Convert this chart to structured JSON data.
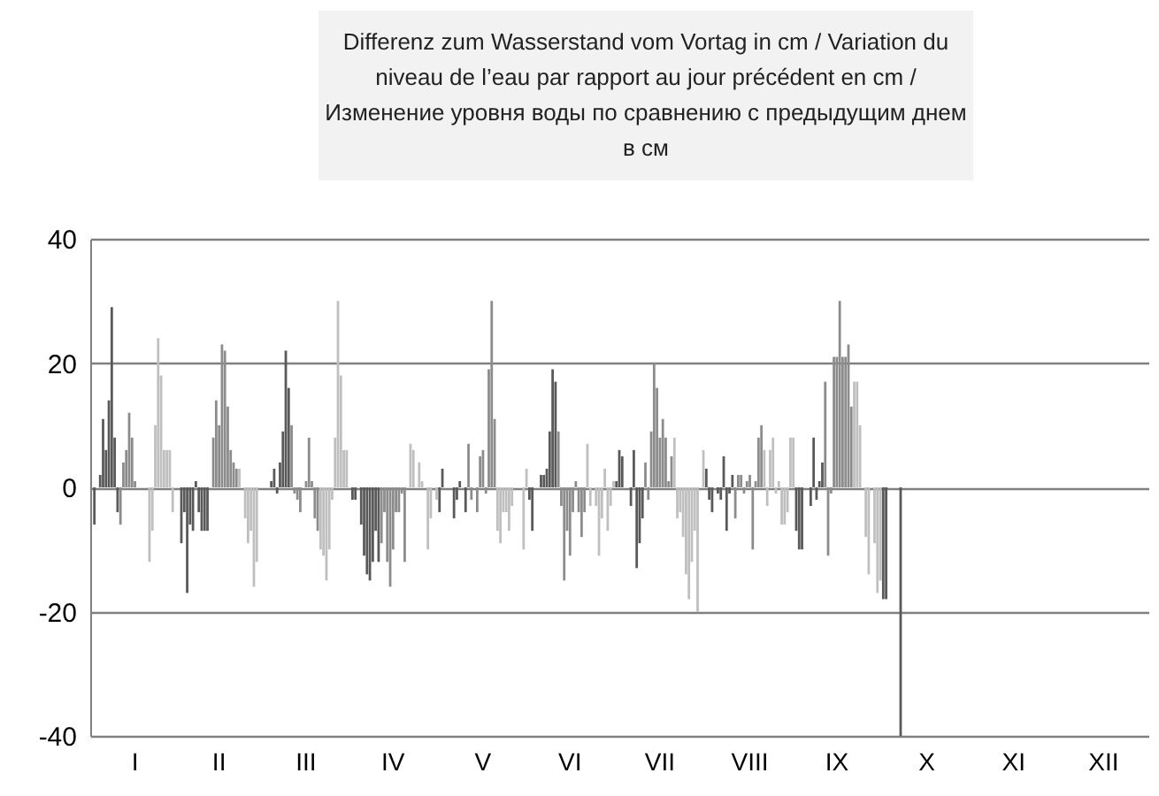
{
  "chart_data": {
    "type": "bar",
    "title": "Differenz zum Wasserstand vom Vortag in cm / Variation du niveau de l’eau par rapport au jour précédent en cm / Изменение уровня воды по сравнению с предыдущим днем в см",
    "categories": [
      null,
      null,
      null,
      null,
      null,
      null,
      null,
      null,
      null,
      null,
      null,
      null,
      null,
      null,
      null,
      "I",
      null,
      null,
      null,
      null,
      null,
      null,
      null,
      null,
      null,
      null,
      null,
      null,
      null,
      null,
      null,
      null,
      null,
      null,
      null,
      null,
      null,
      null,
      null,
      null,
      null,
      null,
      null,
      null,
      "II",
      null,
      null,
      null,
      null,
      null,
      null,
      null,
      null,
      null,
      null,
      null,
      null,
      null,
      null,
      null,
      null,
      null,
      null,
      null,
      null,
      null,
      null,
      null,
      null,
      null,
      null,
      null,
      null,
      null,
      "III",
      null,
      null,
      null,
      null,
      null,
      null,
      null,
      null,
      null,
      null,
      null,
      null,
      null,
      null,
      null,
      null,
      null,
      null,
      null,
      null,
      null,
      null,
      null,
      null,
      null,
      null,
      null,
      null,
      null,
      "IV",
      null,
      null,
      null,
      null,
      null,
      null,
      null,
      null,
      null,
      null,
      null,
      null,
      null,
      null,
      null,
      null,
      null,
      null,
      null,
      null,
      null,
      null,
      null,
      null,
      null,
      null,
      null,
      null,
      null,
      null,
      "V",
      null,
      null,
      null,
      null,
      null,
      null,
      null,
      null,
      null,
      null,
      null,
      null,
      null,
      null,
      null,
      null,
      null,
      null,
      null,
      null,
      null,
      null,
      null,
      null,
      null,
      null,
      null,
      null,
      null,
      "VI",
      null,
      null,
      null,
      null,
      null,
      null,
      null,
      null,
      null,
      null,
      null,
      null,
      null,
      null,
      null,
      null,
      null,
      null,
      null,
      null,
      null,
      null,
      null,
      null,
      null,
      null,
      null,
      null,
      null,
      null,
      "VII",
      null,
      null,
      null,
      null,
      null,
      null,
      null,
      null,
      null,
      null,
      null,
      null,
      null,
      null,
      null,
      null,
      null,
      null,
      null,
      null,
      null,
      null,
      null,
      null,
      null,
      null,
      null,
      null,
      null,
      null,
      "VIII",
      null,
      null,
      null,
      null,
      null,
      null,
      null,
      null,
      null,
      null,
      null,
      null,
      null,
      null,
      null,
      null,
      null,
      null,
      null,
      null,
      null,
      null,
      null,
      null,
      null,
      null,
      null,
      null,
      null,
      "IX",
      null,
      null,
      null,
      null,
      null,
      null,
      null,
      null,
      null,
      null,
      null,
      null,
      null,
      null,
      null,
      null,
      null,
      null,
      null,
      null,
      null,
      null,
      null,
      null,
      null,
      null,
      null,
      null,
      null,
      null,
      "X",
      null,
      null,
      null,
      null,
      null,
      null,
      null,
      null,
      null,
      null,
      null,
      null,
      null,
      null,
      null,
      null,
      null,
      null,
      null,
      null,
      null,
      null,
      null,
      null,
      null,
      null,
      null,
      null,
      null,
      "XI",
      null,
      null,
      null,
      null,
      null,
      null,
      null,
      null,
      null,
      null,
      null,
      null,
      null,
      null,
      null,
      null,
      null,
      null,
      null,
      null,
      null,
      null,
      null,
      null,
      null,
      null,
      null,
      null,
      null,
      null,
      "XII",
      null,
      null,
      null,
      null,
      null,
      null,
      null,
      null,
      null,
      null,
      null,
      null,
      null,
      null,
      null
    ],
    "values": [
      null,
      -6,
      0,
      2,
      11,
      6,
      14,
      29,
      8,
      -4,
      -6,
      4,
      6,
      12,
      8,
      1,
      0,
      0,
      0,
      0,
      -12,
      -7,
      10,
      24,
      18,
      6,
      6,
      6,
      -4,
      0,
      0,
      -9,
      -4,
      -17,
      -6,
      -7,
      1,
      -4,
      -7,
      -7,
      -7,
      0,
      8,
      14,
      10,
      23,
      22,
      13,
      6,
      4,
      3,
      3,
      0,
      -5,
      -9,
      -7,
      -16,
      -12,
      0,
      0,
      0,
      0,
      1,
      3,
      -1,
      4,
      9,
      22,
      16,
      10,
      -1,
      -2,
      -4,
      0,
      1,
      8,
      1,
      -5,
      -7,
      -10,
      -11,
      -15,
      -10,
      -2,
      8,
      30,
      18,
      6,
      6,
      0,
      -2,
      -2,
      0,
      -6,
      -11,
      -14,
      -15,
      -12,
      -7,
      -12,
      -9,
      -4,
      -12,
      -16,
      -10,
      -4,
      -4,
      -1,
      -12,
      0,
      7,
      6,
      0,
      4,
      1,
      0,
      -10,
      -5,
      0,
      -2,
      -4,
      3,
      0,
      0,
      0,
      -5,
      -2,
      1,
      0,
      -4,
      7,
      -2,
      0,
      -4,
      5,
      6,
      -1,
      19,
      30,
      11,
      -7,
      -9,
      -4,
      -4,
      -7,
      -3,
      0,
      0,
      0,
      -10,
      3,
      -2,
      -7,
      0,
      0,
      2,
      2,
      3,
      9,
      19,
      17,
      9,
      -3,
      -15,
      -7,
      -11,
      -4,
      1,
      -4,
      -8,
      -4,
      7,
      -3,
      0,
      -3,
      -11,
      -5,
      3,
      -7,
      -3,
      1,
      1,
      6,
      5,
      0,
      0,
      -3,
      6,
      -13,
      -9,
      -5,
      4,
      -2,
      9,
      20,
      16,
      8,
      11,
      8,
      1,
      5,
      8,
      -5,
      -4,
      -8,
      -14,
      -18,
      -12,
      -7,
      -20,
      0,
      6,
      3,
      -2,
      -4,
      0,
      -1,
      -2,
      5,
      -7,
      -1,
      2,
      -5,
      2,
      2,
      -1,
      1,
      2,
      -10,
      1,
      8,
      10,
      6,
      -3,
      6,
      8,
      -1,
      1,
      -6,
      -6,
      -4,
      8,
      8,
      -7,
      -10,
      -10,
      0,
      0,
      -3,
      8,
      -2,
      1,
      4,
      17,
      -11,
      -1,
      21,
      21,
      30,
      21,
      21,
      23,
      13,
      17,
      17,
      10,
      0,
      -8,
      -14,
      0,
      -9,
      -17,
      -15,
      -18,
      -18,
      null,
      null,
      null,
      null,
      -40,
      null,
      null,
      null,
      null,
      null,
      null,
      null,
      null,
      null,
      null,
      null,
      null,
      null,
      null,
      null,
      null,
      null,
      null,
      null,
      null,
      null,
      null,
      null,
      null,
      null,
      null,
      null,
      null,
      null,
      null,
      null,
      null,
      null,
      null,
      null,
      null,
      null,
      null,
      null,
      null,
      null,
      null,
      null,
      null,
      null,
      null,
      null,
      null,
      null,
      null,
      null,
      null,
      null,
      null,
      null,
      null,
      null,
      null,
      null,
      null,
      null,
      null,
      null,
      null,
      null,
      null,
      null,
      null,
      null,
      null,
      null,
      null,
      null,
      null,
      null,
      null,
      null,
      null,
      null,
      null,
      null,
      null,
      null,
      null,
      null
    ],
    "colors": [
      "#595959",
      "#595959",
      "#595959",
      "#595959",
      "#595959",
      "#595959",
      "#595959",
      "#595959",
      "#595959",
      "#595959",
      "#8c8c8c",
      "#8c8c8c",
      "#8c8c8c",
      "#8c8c8c",
      "#8c8c8c",
      "#8c8c8c",
      "#8c8c8c",
      "#8c8c8c",
      "#8c8c8c",
      "#8c8c8c",
      "#bfbfbf",
      "#bfbfbf",
      "#bfbfbf",
      "#bfbfbf",
      "#bfbfbf",
      "#bfbfbf",
      "#bfbfbf",
      "#bfbfbf",
      "#bfbfbf",
      "#bfbfbf",
      "#bfbfbf",
      "#595959",
      "#595959",
      "#595959",
      "#595959",
      "#595959",
      "#595959",
      "#595959",
      "#595959",
      "#595959",
      "#595959",
      "#8c8c8c",
      "#8c8c8c",
      "#8c8c8c",
      "#8c8c8c",
      "#8c8c8c",
      "#8c8c8c",
      "#8c8c8c",
      "#8c8c8c",
      "#8c8c8c",
      "#8c8c8c",
      "#bfbfbf",
      "#bfbfbf",
      "#bfbfbf",
      "#bfbfbf",
      "#bfbfbf",
      "#bfbfbf",
      "#bfbfbf",
      "#bfbfbf",
      "#595959",
      "#595959",
      "#595959",
      "#595959",
      "#595959",
      "#595959",
      "#595959",
      "#595959",
      "#595959",
      "#595959",
      "#8c8c8c",
      "#8c8c8c",
      "#8c8c8c",
      "#8c8c8c",
      "#8c8c8c",
      "#8c8c8c",
      "#8c8c8c",
      "#8c8c8c",
      "#8c8c8c",
      "#8c8c8c",
      "#bfbfbf",
      "#bfbfbf",
      "#bfbfbf",
      "#bfbfbf",
      "#bfbfbf",
      "#bfbfbf",
      "#bfbfbf",
      "#bfbfbf",
      "#bfbfbf",
      "#bfbfbf",
      "#bfbfbf",
      "#595959",
      "#595959",
      "#595959",
      "#595959",
      "#595959",
      "#595959",
      "#595959",
      "#595959",
      "#595959",
      "#595959",
      "#8c8c8c",
      "#8c8c8c",
      "#8c8c8c",
      "#8c8c8c",
      "#8c8c8c",
      "#8c8c8c",
      "#8c8c8c",
      "#8c8c8c",
      "#8c8c8c",
      "#8c8c8c",
      "#bfbfbf",
      "#bfbfbf",
      "#bfbfbf",
      "#bfbfbf",
      "#bfbfbf",
      "#bfbfbf",
      "#bfbfbf",
      "#bfbfbf",
      "#bfbfbf",
      "#bfbfbf",
      "#595959",
      "#595959",
      "#595959",
      "#595959",
      "#595959",
      "#595959",
      "#595959",
      "#595959",
      "#595959",
      "#595959",
      "#8c8c8c",
      "#8c8c8c",
      "#8c8c8c",
      "#8c8c8c",
      "#8c8c8c",
      "#8c8c8c",
      "#8c8c8c",
      "#8c8c8c",
      "#8c8c8c",
      "#8c8c8c",
      "#bfbfbf",
      "#bfbfbf",
      "#bfbfbf",
      "#bfbfbf",
      "#bfbfbf",
      "#bfbfbf",
      "#bfbfbf",
      "#bfbfbf",
      "#bfbfbf",
      "#bfbfbf",
      "#bfbfbf",
      "#595959",
      "#595959",
      "#595959",
      "#595959",
      "#595959",
      "#595959",
      "#595959",
      "#595959",
      "#595959",
      "#595959",
      "#8c8c8c",
      "#8c8c8c",
      "#8c8c8c",
      "#8c8c8c",
      "#8c8c8c",
      "#8c8c8c",
      "#8c8c8c",
      "#8c8c8c",
      "#8c8c8c",
      "#8c8c8c",
      "#bfbfbf",
      "#bfbfbf",
      "#bfbfbf",
      "#bfbfbf",
      "#bfbfbf",
      "#bfbfbf",
      "#bfbfbf",
      "#bfbfbf",
      "#bfbfbf",
      "#bfbfbf",
      "#595959",
      "#595959",
      "#595959",
      "#595959",
      "#595959",
      "#595959",
      "#595959",
      "#595959",
      "#595959",
      "#595959",
      "#8c8c8c",
      "#8c8c8c",
      "#8c8c8c",
      "#8c8c8c",
      "#8c8c8c",
      "#8c8c8c",
      "#8c8c8c",
      "#8c8c8c",
      "#8c8c8c",
      "#8c8c8c",
      "#bfbfbf",
      "#bfbfbf",
      "#bfbfbf",
      "#bfbfbf",
      "#bfbfbf",
      "#bfbfbf",
      "#bfbfbf",
      "#bfbfbf",
      "#bfbfbf",
      "#bfbfbf",
      "#bfbfbf",
      "#595959",
      "#595959",
      "#595959",
      "#595959",
      "#595959",
      "#595959",
      "#595959",
      "#595959",
      "#595959",
      "#595959",
      "#8c8c8c",
      "#8c8c8c",
      "#8c8c8c",
      "#8c8c8c",
      "#8c8c8c",
      "#8c8c8c",
      "#8c8c8c",
      "#8c8c8c",
      "#8c8c8c",
      "#8c8c8c",
      "#bfbfbf",
      "#bfbfbf",
      "#bfbfbf",
      "#bfbfbf",
      "#bfbfbf",
      "#bfbfbf",
      "#bfbfbf",
      "#bfbfbf",
      "#bfbfbf",
      "#bfbfbf",
      "#bfbfbf",
      "#595959",
      "#595959",
      "#595959",
      "#595959",
      "#595959",
      "#595959",
      "#595959",
      "#595959",
      "#595959",
      "#595959",
      "#8c8c8c",
      "#8c8c8c",
      "#8c8c8c",
      "#8c8c8c",
      "#8c8c8c",
      "#8c8c8c",
      "#8c8c8c",
      "#8c8c8c",
      "#8c8c8c",
      "#8c8c8c",
      "#bfbfbf",
      "#bfbfbf",
      "#bfbfbf",
      "#bfbfbf",
      "#bfbfbf",
      "#bfbfbf",
      "#bfbfbf",
      "#bfbfbf",
      "#bfbfbf",
      "#bfbfbf",
      "#595959",
      "#595959",
      "#595959",
      "#595959",
      "#595959",
      "#595959",
      "#595959",
      null,
      null,
      null,
      null,
      null,
      null,
      null,
      null,
      null,
      null,
      null,
      null,
      null,
      null,
      null,
      null,
      null,
      null,
      null,
      null,
      null,
      null,
      null,
      null,
      null,
      null,
      null,
      null,
      null,
      null,
      null,
      null,
      null,
      null,
      null,
      null,
      null,
      null,
      null,
      null,
      null,
      null,
      null,
      null,
      null,
      null,
      null,
      null,
      null,
      null,
      null,
      null,
      null,
      null,
      null,
      null,
      null,
      null,
      null,
      null,
      null,
      null,
      null,
      null,
      null,
      null,
      null,
      null,
      null,
      null,
      null,
      null,
      null,
      null,
      null,
      null,
      null,
      null,
      null,
      null,
      null,
      null,
      null,
      null,
      null
    ],
    "ylim": [
      -40,
      40
    ],
    "yticks": [
      -40,
      -20,
      0,
      20,
      40
    ],
    "grid": "y"
  }
}
